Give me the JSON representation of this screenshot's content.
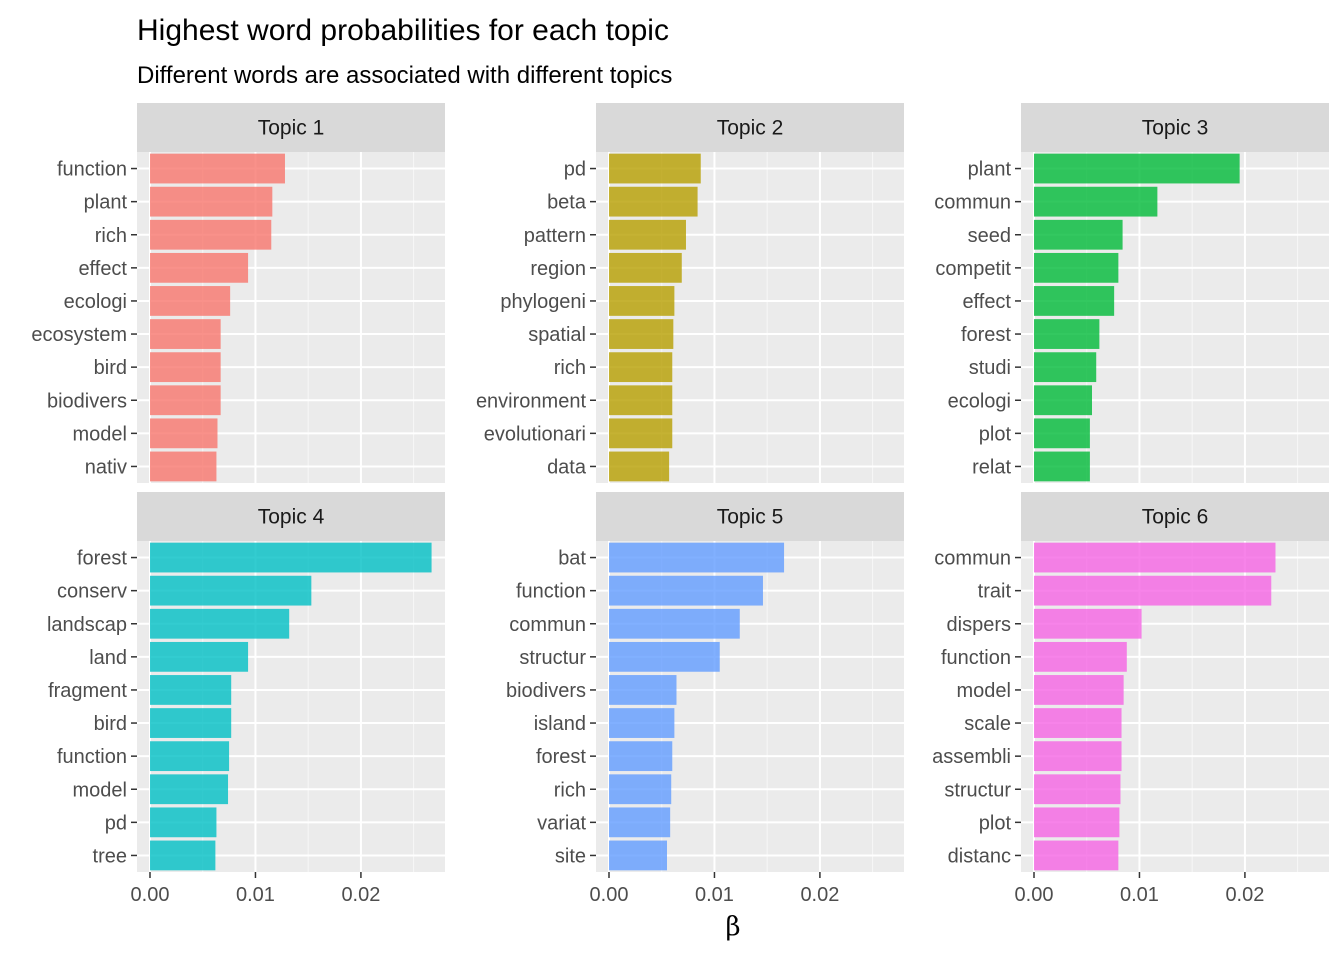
{
  "chart_data": {
    "type": "bar",
    "orientation": "horizontal",
    "title": "Highest word probabilities for each topic",
    "subtitle": "Different words are associated with different topics",
    "xlabel": "β",
    "xlim": [
      0,
      0.028
    ],
    "xticks": [
      0.0,
      0.01,
      0.02
    ],
    "xtick_labels": [
      "0.00",
      "0.01",
      "0.02"
    ],
    "facets": [
      {
        "name": "Topic 1",
        "color": "#F8766D",
        "categories": [
          "function",
          "plant",
          "rich",
          "effect",
          "ecologi",
          "ecosystem",
          "bird",
          "biodivers",
          "model",
          "nativ"
        ],
        "values": [
          0.0128,
          0.0116,
          0.0115,
          0.0093,
          0.0076,
          0.0067,
          0.0067,
          0.0067,
          0.0064,
          0.0063
        ]
      },
      {
        "name": "Topic 2",
        "color": "#B79F00",
        "categories": [
          "pd",
          "beta",
          "pattern",
          "region",
          "phylogeni",
          "spatial",
          "rich",
          "environment",
          "evolutionari",
          "data"
        ],
        "values": [
          0.0087,
          0.0084,
          0.0073,
          0.0069,
          0.0062,
          0.0061,
          0.006,
          0.006,
          0.006,
          0.0057
        ]
      },
      {
        "name": "Topic 3",
        "color": "#00BA38",
        "categories": [
          "plant",
          "commun",
          "seed",
          "competit",
          "effect",
          "forest",
          "studi",
          "ecologi",
          "plot",
          "relat"
        ],
        "values": [
          0.0195,
          0.0117,
          0.0084,
          0.008,
          0.0076,
          0.0062,
          0.0059,
          0.0055,
          0.0053,
          0.0053
        ]
      },
      {
        "name": "Topic 4",
        "color": "#00BFC4",
        "categories": [
          "forest",
          "conserv",
          "landscap",
          "land",
          "fragment",
          "bird",
          "function",
          "model",
          "pd",
          "tree"
        ],
        "values": [
          0.0267,
          0.0153,
          0.0132,
          0.0093,
          0.0077,
          0.0077,
          0.0075,
          0.0074,
          0.0063,
          0.0062
        ]
      },
      {
        "name": "Topic 5",
        "color": "#619CFF",
        "categories": [
          "bat",
          "function",
          "commun",
          "structur",
          "biodivers",
          "island",
          "forest",
          "rich",
          "variat",
          "site"
        ],
        "values": [
          0.0166,
          0.0146,
          0.0124,
          0.0105,
          0.0064,
          0.0062,
          0.006,
          0.0059,
          0.0058,
          0.0055
        ]
      },
      {
        "name": "Topic 6",
        "color": "#F564E3",
        "categories": [
          "commun",
          "trait",
          "dispers",
          "function",
          "model",
          "scale",
          "assembli",
          "structur",
          "plot",
          "distanc"
        ],
        "values": [
          0.0229,
          0.0225,
          0.0102,
          0.0088,
          0.0085,
          0.0083,
          0.0083,
          0.0082,
          0.0081,
          0.008
        ]
      }
    ]
  }
}
